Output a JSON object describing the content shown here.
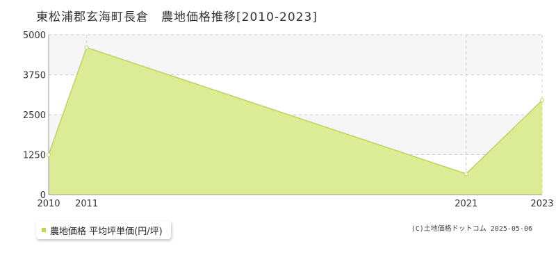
{
  "chart_data": {
    "type": "area",
    "title": "東松浦郡玄海町長倉　農地価格推移[2010-2023]",
    "x": [
      2010,
      2011,
      2021,
      2023
    ],
    "x_ticks": [
      "2010",
      "2011",
      "2021",
      "2023"
    ],
    "y_ticks": [
      "0",
      "1250",
      "2500",
      "3750",
      "5000"
    ],
    "ylim": [
      0,
      5000
    ],
    "series": [
      {
        "name": "農地価格 平均坪単価(円/坪)",
        "values": [
          1250,
          4600,
          650,
          2950
        ]
      }
    ],
    "grid": true,
    "legend_position": "bottom-left",
    "colors": {
      "fill": "#dcec96",
      "line": "#b9d94f",
      "point_fill": "#ffffff",
      "band": "#f7f6f7",
      "grid": "#cccccc",
      "axis": "#999999"
    }
  },
  "copyright": "(C)土地価格ドットコム 2025-05-06"
}
